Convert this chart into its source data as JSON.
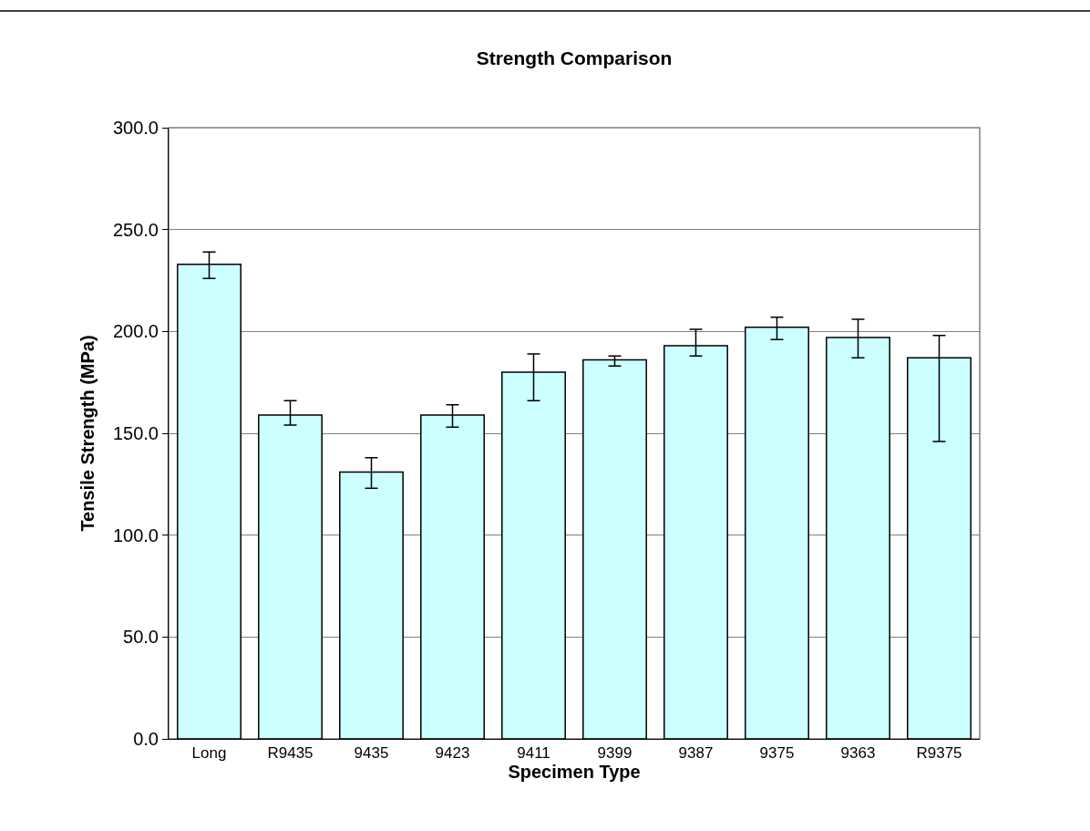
{
  "chart_data": {
    "type": "bar",
    "title": "Strength Comparison",
    "xlabel": "Specimen Type",
    "ylabel": "Tensile Strength (MPa)",
    "categories": [
      "Long",
      "R9435",
      "9435",
      "9423",
      "9411",
      "9399",
      "9387",
      "9375",
      "9363",
      "R9375"
    ],
    "values": [
      233,
      159,
      131,
      159,
      180,
      186,
      193,
      202,
      197,
      187
    ],
    "errors": [
      [
        226,
        239
      ],
      [
        154,
        166
      ],
      [
        123,
        138
      ],
      [
        153,
        164
      ],
      [
        166,
        189
      ],
      [
        183,
        188
      ],
      [
        188,
        201
      ],
      [
        196,
        207
      ],
      [
        187,
        206
      ],
      [
        146,
        198
      ]
    ],
    "color": "#ccffff",
    "ylim": [
      0,
      300
    ],
    "yticks": [
      {
        "value": 0,
        "label": "0.0"
      },
      {
        "value": 50,
        "label": "50.0"
      },
      {
        "value": 100,
        "label": "100.0"
      },
      {
        "value": 150,
        "label": "150.0"
      },
      {
        "value": 200,
        "label": "200.0"
      },
      {
        "value": 250,
        "label": "250.0"
      },
      {
        "value": 300,
        "label": "300.0"
      }
    ],
    "grid": "y",
    "legend": false
  }
}
